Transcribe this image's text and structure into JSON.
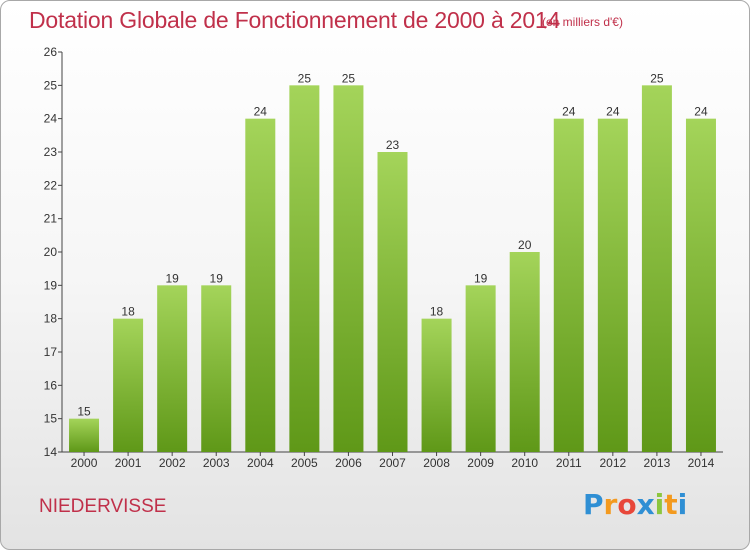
{
  "header": {
    "title": "Dotation Globale de Fonctionnement de 2000 à 2014",
    "subtitle": "(en milliers d'€)"
  },
  "footer": {
    "commune": "NIEDERVISSE",
    "logo_letters": [
      "P",
      "r",
      "o",
      "x",
      "i",
      "t",
      "i"
    ],
    "logo_colors": [
      "#2f8fd4",
      "#f39a1f",
      "#e8473a",
      "#2f8fd4",
      "#8cc63f",
      "#f39a1f",
      "#2f8fd4"
    ]
  },
  "colors": {
    "title": "#c0304a",
    "bar_light": "#a4d45a",
    "bar_dark": "#5f9818",
    "axis": "#444444",
    "grid": "#cccccc"
  },
  "chart_data": {
    "type": "bar",
    "title": "Dotation Globale de Fonctionnement de 2000 à 2014",
    "subtitle": "(en milliers d'€)",
    "xlabel": "",
    "ylabel": "",
    "categories": [
      "2000",
      "2001",
      "2002",
      "2003",
      "2004",
      "2005",
      "2006",
      "2007",
      "2008",
      "2009",
      "2010",
      "2011",
      "2012",
      "2013",
      "2014"
    ],
    "values": [
      15,
      18,
      19,
      19,
      24,
      25,
      25,
      23,
      18,
      19,
      20,
      24,
      24,
      25,
      24
    ],
    "ylim": [
      14,
      26
    ],
    "yticks": [
      14,
      15,
      16,
      17,
      18,
      19,
      20,
      21,
      22,
      23,
      24,
      25,
      26
    ],
    "grid": false,
    "data_labels": true
  }
}
